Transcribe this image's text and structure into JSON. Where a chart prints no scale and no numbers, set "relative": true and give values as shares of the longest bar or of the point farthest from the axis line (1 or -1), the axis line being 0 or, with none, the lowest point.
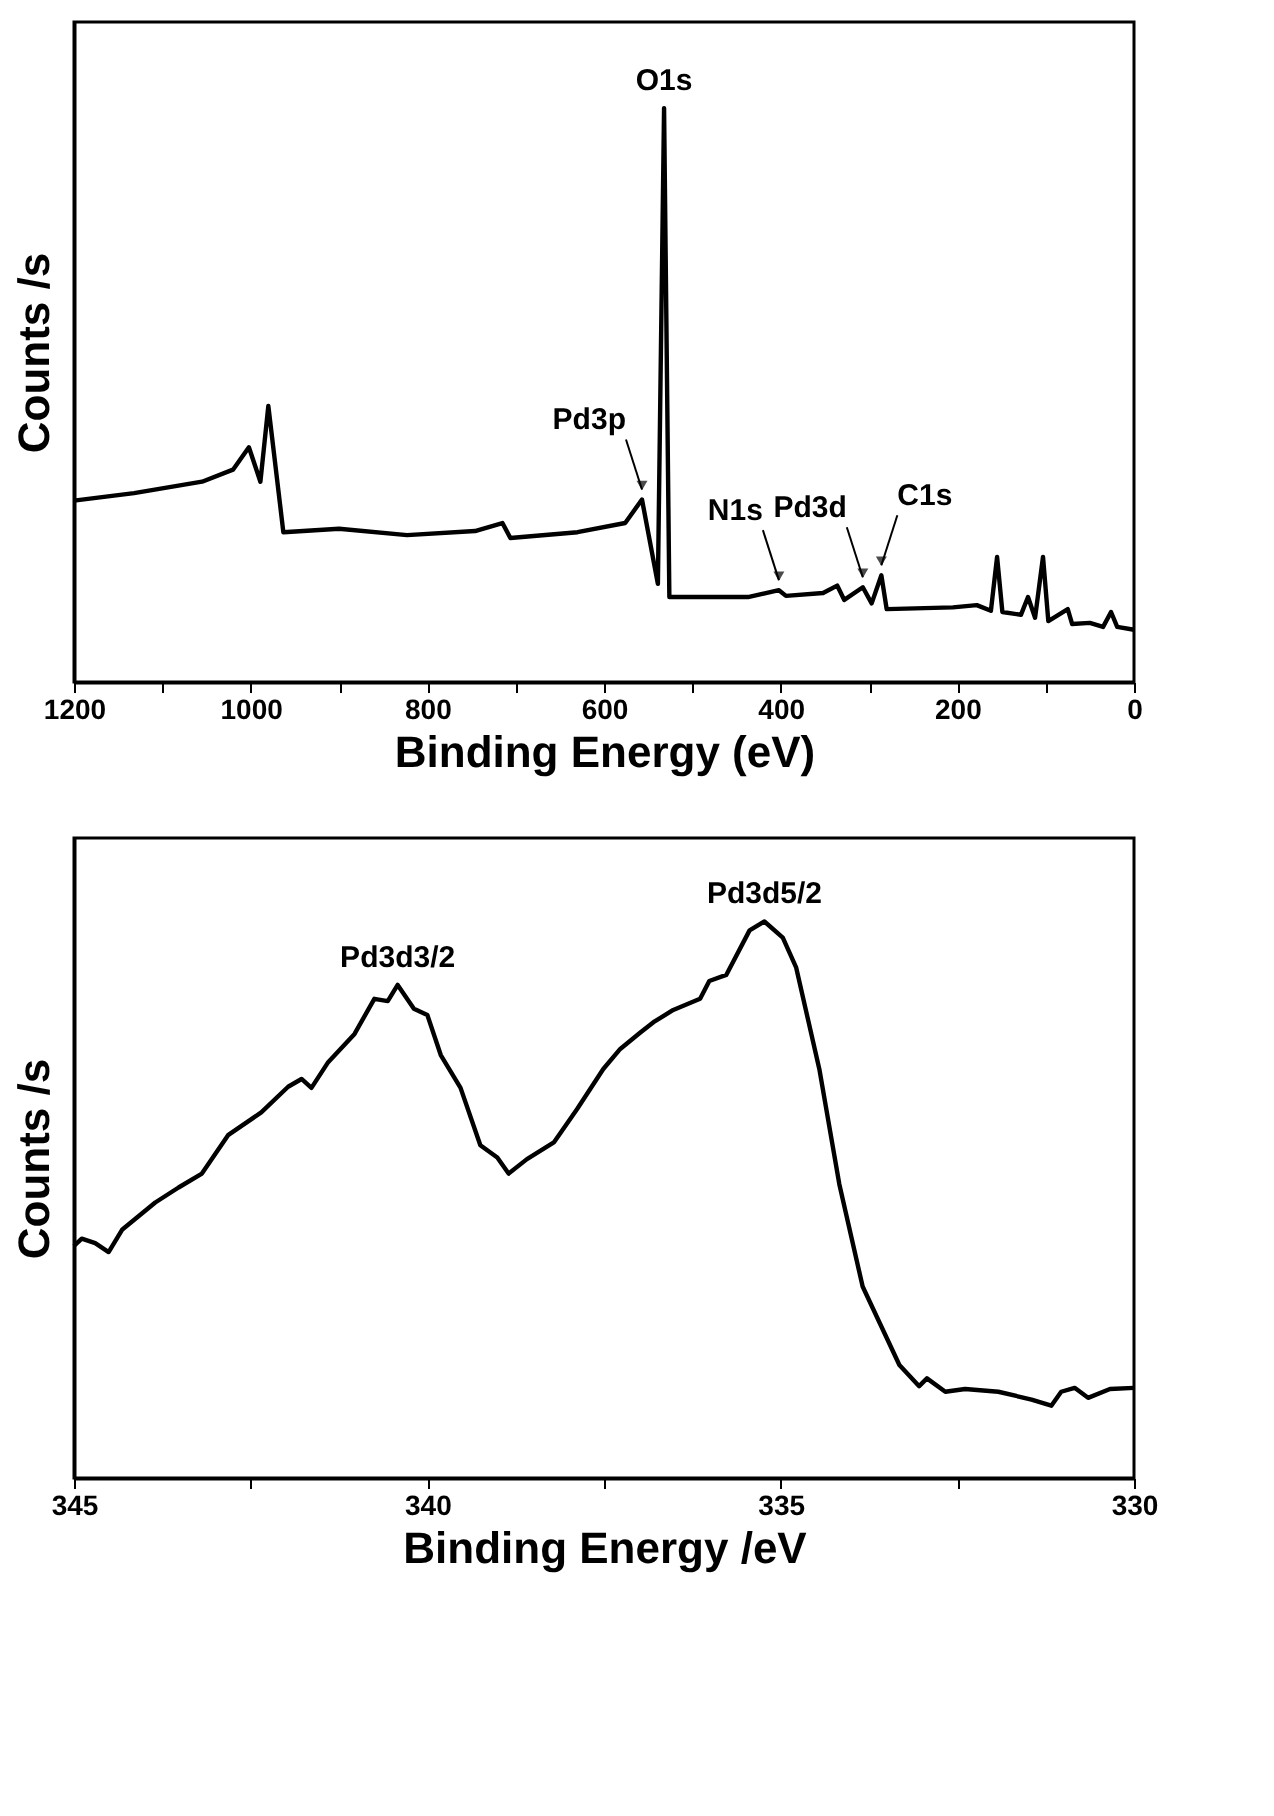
{
  "chart_data": [
    {
      "type": "line",
      "relative": true,
      "xlabel": "Binding Energy (eV)",
      "ylabel": "Counts /s",
      "grid": false,
      "marker": "none",
      "line_style": "solid",
      "xlim": [
        1200,
        0
      ],
      "xticks": [
        0,
        {
          "value": 100,
          "label": null
        },
        200,
        {
          "value": 300,
          "label": null
        },
        400,
        {
          "value": 500,
          "label": null
        },
        600,
        {
          "value": 700,
          "label": null
        },
        800,
        {
          "value": 900,
          "label": null
        },
        1000,
        {
          "value": 1100,
          "label": null
        },
        1200
      ],
      "series": [
        {
          "color": "#000000",
          "x": [
            1200,
            1132,
            1055,
            1020,
            1002,
            989,
            980,
            963,
            900,
            823,
            746,
            715,
            706,
            630,
            576,
            557,
            539,
            532,
            526,
            437,
            402,
            394,
            352,
            336,
            328,
            307,
            297,
            286,
            280,
            205,
            178,
            162,
            155,
            149,
            128,
            120,
            112,
            103,
            97,
            75,
            70,
            50,
            35,
            26,
            19,
            0
          ],
          "values": [
            0.316,
            0.329,
            0.349,
            0.37,
            0.409,
            0.349,
            0.481,
            0.261,
            0.267,
            0.256,
            0.263,
            0.277,
            0.251,
            0.261,
            0.277,
            0.318,
            0.171,
            1.0,
            0.148,
            0.148,
            0.16,
            0.15,
            0.155,
            0.168,
            0.143,
            0.165,
            0.137,
            0.186,
            0.127,
            0.13,
            0.134,
            0.124,
            0.218,
            0.122,
            0.117,
            0.148,
            0.112,
            0.218,
            0.106,
            0.127,
            0.101,
            0.103,
            0.096,
            0.122,
            0.096,
            0.091
          ]
        }
      ],
      "annotations": [
        {
          "text": "O1s",
          "x": 532,
          "y": 1.0
        },
        {
          "text": "Pd3p",
          "x": 557,
          "y": 0.318
        },
        {
          "text": "N1s",
          "x": 402,
          "y": 0.16
        },
        {
          "text": "Pd3d",
          "x": 307,
          "y": 0.165
        },
        {
          "text": "C1s",
          "x": 286,
          "y": 0.186
        }
      ]
    },
    {
      "type": "line",
      "relative": true,
      "xlabel": "Binding Energy /eV",
      "ylabel": "Counts /s",
      "grid": false,
      "marker": "none",
      "line_style": "solid",
      "xlim": [
        345,
        330
      ],
      "xticks": [
        330,
        {
          "value": 332.5,
          "label": null
        },
        335,
        {
          "value": 337.5,
          "label": null
        },
        340,
        {
          "value": 342.5,
          "label": null
        },
        345
      ],
      "series": [
        {
          "color": "#000000",
          "x": [
            345,
            344.89,
            344.7,
            344.51,
            344.32,
            343.85,
            343.52,
            343.19,
            342.82,
            342.35,
            341.97,
            341.78,
            341.64,
            341.41,
            341.03,
            340.75,
            340.56,
            340.42,
            340.19,
            340.0,
            339.81,
            339.53,
            339.25,
            339.01,
            338.85,
            338.59,
            338.21,
            337.88,
            337.51,
            337.27,
            336.99,
            336.8,
            336.52,
            336.14,
            336.01,
            335.77,
            335.44,
            335.23,
            334.97,
            334.78,
            334.45,
            334.17,
            333.84,
            333.6,
            333.32,
            333.04,
            332.93,
            332.67,
            332.39,
            331.92,
            331.45,
            331.17,
            331.03,
            330.84,
            330.65,
            330.34,
            330
          ],
          "values": [
            0.417,
            0.43,
            0.422,
            0.406,
            0.446,
            0.495,
            0.522,
            0.547,
            0.616,
            0.657,
            0.703,
            0.717,
            0.701,
            0.746,
            0.798,
            0.861,
            0.857,
            0.886,
            0.843,
            0.832,
            0.76,
            0.701,
            0.598,
            0.576,
            0.547,
            0.573,
            0.603,
            0.663,
            0.735,
            0.771,
            0.8,
            0.819,
            0.841,
            0.861,
            0.893,
            0.904,
            0.984,
            1.0,
            0.971,
            0.917,
            0.733,
            0.528,
            0.344,
            0.279,
            0.203,
            0.165,
            0.179,
            0.155,
            0.16,
            0.155,
            0.141,
            0.13,
            0.155,
            0.162,
            0.144,
            0.16,
            0.162
          ]
        }
      ],
      "annotations": [
        {
          "text": "Pd3d3/2",
          "x": 340.42,
          "y": 0.886
        },
        {
          "text": "Pd3d5/2",
          "x": 335.23,
          "y": 1.0
        }
      ]
    }
  ]
}
